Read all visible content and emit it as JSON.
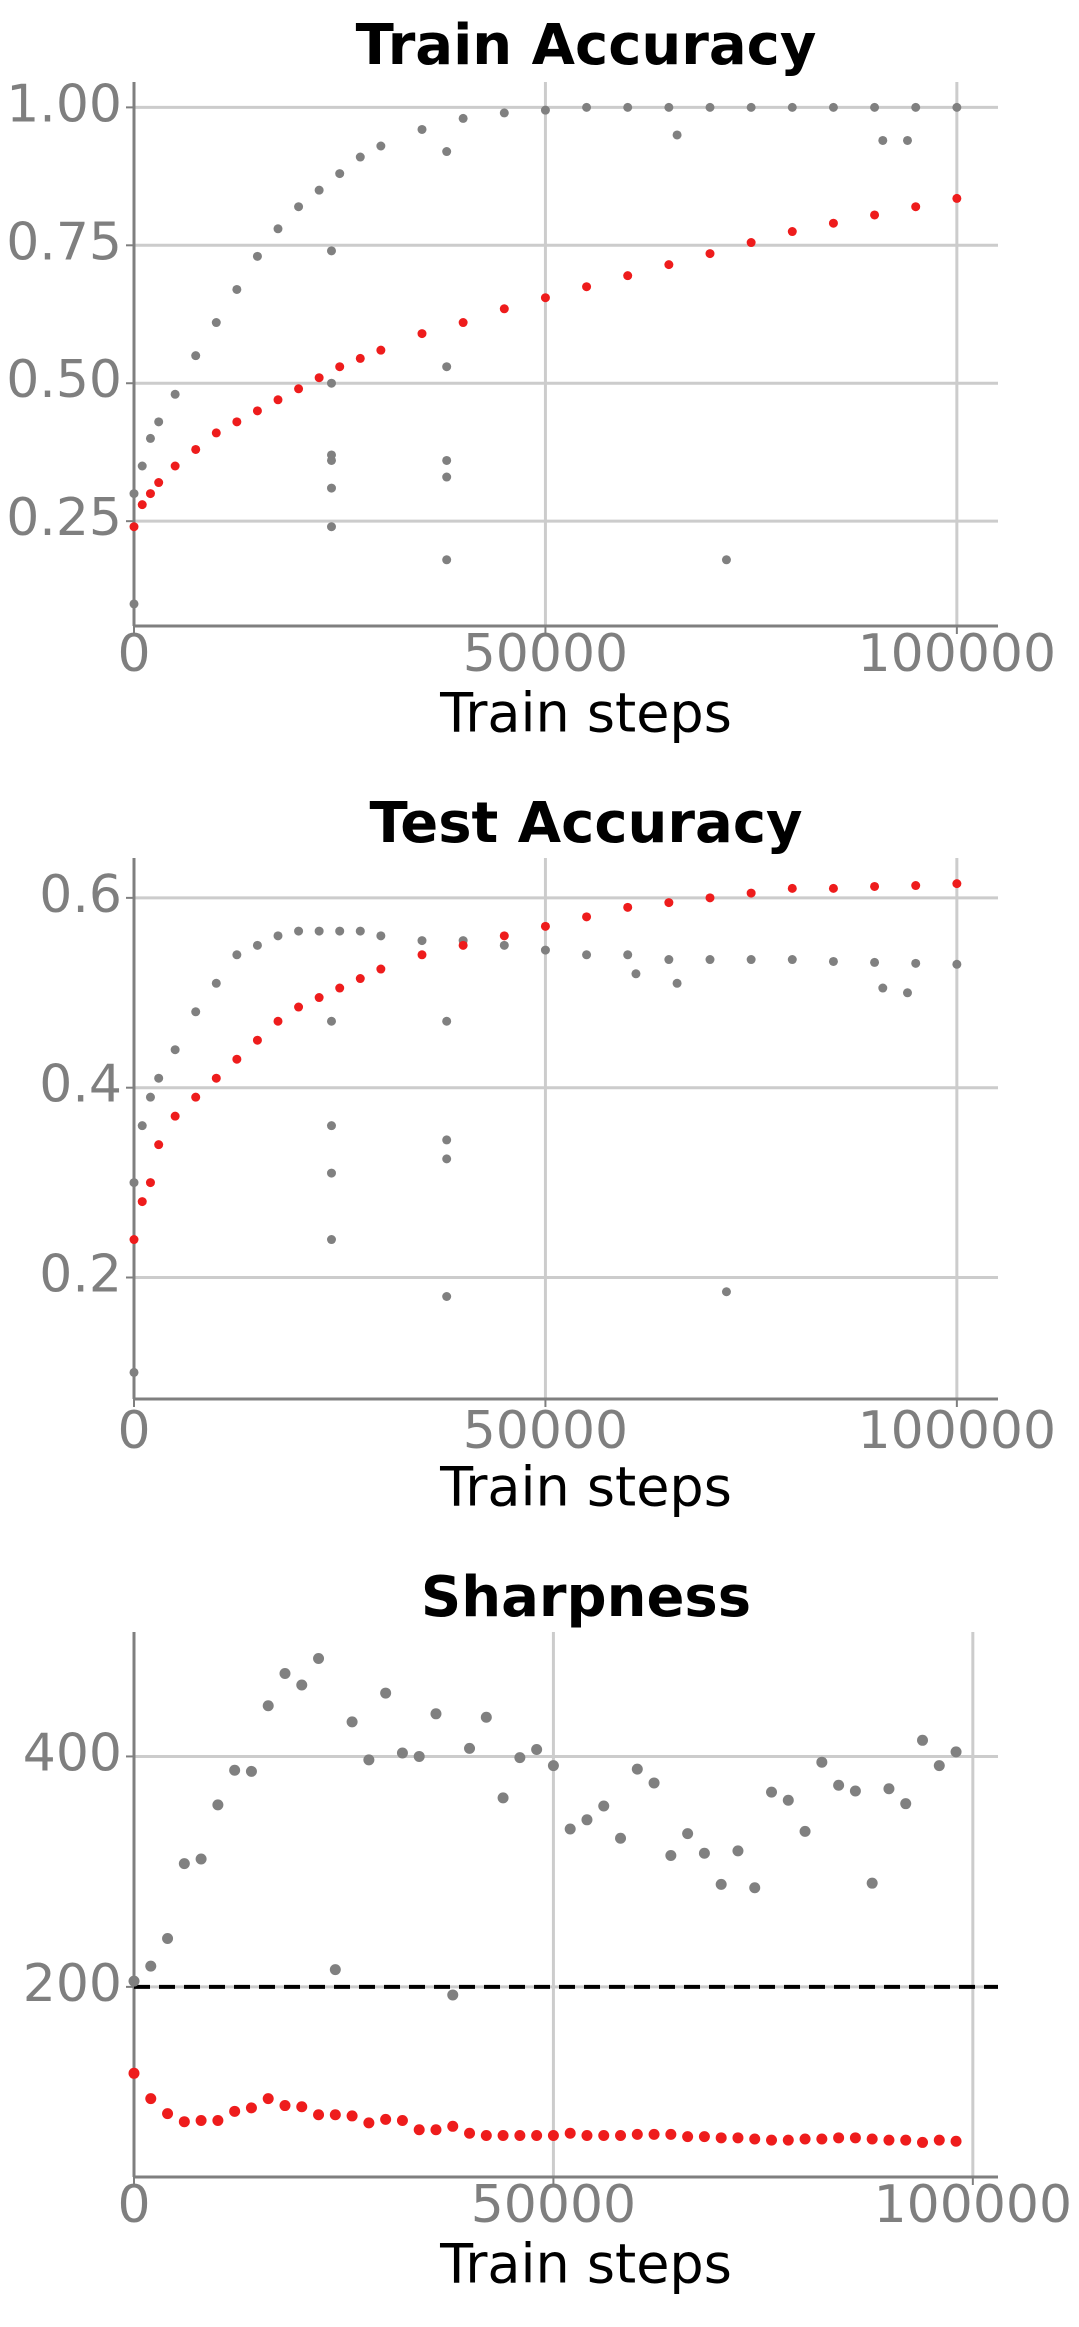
{
  "chart_data": [
    {
      "type": "scatter",
      "title": "Train Accuracy",
      "x_label": "Train steps",
      "xlim": [
        0,
        105000
      ],
      "xticks": [
        0,
        50000,
        100000
      ],
      "ylim": [
        0.06,
        1.046
      ],
      "yticks": [
        {
          "value": 0.25,
          "label": "0.25"
        },
        {
          "value": 0.5,
          "label": "0.50"
        },
        {
          "value": 0.75,
          "label": "0.75"
        },
        {
          "value": 1.0,
          "label": "1.00"
        }
      ],
      "grid": true,
      "series": [
        {
          "color": "#808080",
          "x": [
            0,
            1000,
            2000,
            3000,
            5000,
            7500,
            10000,
            12500,
            15000,
            17500,
            20000,
            22500,
            25000,
            27500,
            30000,
            35000,
            40000,
            45000,
            50000,
            55000,
            60000,
            65000,
            70000,
            75000,
            80000,
            85000,
            90000,
            95000,
            100000
          ],
          "values": [
            0.3,
            0.35,
            0.4,
            0.43,
            0.48,
            0.55,
            0.61,
            0.67,
            0.73,
            0.78,
            0.82,
            0.85,
            0.88,
            0.91,
            0.93,
            0.96,
            0.98,
            0.99,
            0.995,
            1.0,
            1.0,
            1.0,
            1.0,
            1.0,
            1.0,
            1.0,
            1.0,
            1.0,
            1.0
          ]
        },
        {
          "color": "#808080",
          "x": [
            0,
            24000,
            24000,
            24000,
            24000,
            24000,
            24000,
            38000,
            38000,
            38000,
            38000,
            38000,
            66000,
            72000,
            91000,
            94000
          ],
          "values": [
            0.1,
            0.74,
            0.5,
            0.37,
            0.36,
            0.31,
            0.24,
            0.92,
            0.53,
            0.36,
            0.33,
            0.18,
            0.95,
            0.18,
            0.94,
            0.94
          ]
        },
        {
          "color": "#ee1c1c",
          "x": [
            0,
            1000,
            2000,
            3000,
            5000,
            7500,
            10000,
            12500,
            15000,
            17500,
            20000,
            22500,
            25000,
            27500,
            30000,
            35000,
            40000,
            45000,
            50000,
            55000,
            60000,
            65000,
            70000,
            75000,
            80000,
            85000,
            90000,
            95000,
            100000
          ],
          "values": [
            0.24,
            0.28,
            0.3,
            0.32,
            0.35,
            0.38,
            0.41,
            0.43,
            0.45,
            0.47,
            0.49,
            0.51,
            0.53,
            0.545,
            0.56,
            0.59,
            0.61,
            0.635,
            0.655,
            0.675,
            0.695,
            0.715,
            0.735,
            0.755,
            0.775,
            0.79,
            0.805,
            0.82,
            0.835
          ]
        }
      ]
    },
    {
      "type": "scatter",
      "title": "Test Accuracy",
      "x_label": "Train steps",
      "xlim": [
        0,
        105000
      ],
      "xticks": [
        0,
        50000,
        100000
      ],
      "ylim": [
        0.072,
        0.642
      ],
      "yticks": [
        0.2,
        0.4,
        0.6
      ],
      "grid": true,
      "series": [
        {
          "color": "#808080",
          "x": [
            0,
            1000,
            2000,
            3000,
            5000,
            7500,
            10000,
            12500,
            15000,
            17500,
            20000,
            22500,
            25000,
            27500,
            30000,
            35000,
            40000,
            45000,
            50000,
            55000,
            60000,
            65000,
            70000,
            75000,
            80000,
            85000,
            90000,
            95000,
            100000
          ],
          "values": [
            0.3,
            0.36,
            0.39,
            0.41,
            0.44,
            0.48,
            0.51,
            0.54,
            0.55,
            0.56,
            0.565,
            0.565,
            0.565,
            0.565,
            0.56,
            0.555,
            0.555,
            0.55,
            0.545,
            0.54,
            0.54,
            0.535,
            0.535,
            0.535,
            0.535,
            0.533,
            0.532,
            0.531,
            0.53
          ]
        },
        {
          "color": "#808080",
          "x": [
            0,
            24000,
            24000,
            24000,
            24000,
            38000,
            38000,
            38000,
            38000,
            61000,
            66000,
            72000,
            91000,
            94000
          ],
          "values": [
            0.1,
            0.47,
            0.36,
            0.31,
            0.24,
            0.47,
            0.345,
            0.325,
            0.18,
            0.52,
            0.51,
            0.185,
            0.505,
            0.5
          ]
        },
        {
          "color": "#ee1c1c",
          "x": [
            0,
            1000,
            2000,
            3000,
            5000,
            7500,
            10000,
            12500,
            15000,
            17500,
            20000,
            22500,
            25000,
            27500,
            30000,
            35000,
            40000,
            45000,
            50000,
            55000,
            60000,
            65000,
            70000,
            75000,
            80000,
            85000,
            90000,
            95000,
            100000
          ],
          "values": [
            0.24,
            0.28,
            0.3,
            0.34,
            0.37,
            0.39,
            0.41,
            0.43,
            0.45,
            0.47,
            0.485,
            0.495,
            0.505,
            0.515,
            0.525,
            0.54,
            0.55,
            0.56,
            0.57,
            0.58,
            0.59,
            0.595,
            0.6,
            0.605,
            0.61,
            0.61,
            0.612,
            0.613,
            0.615
          ]
        }
      ]
    },
    {
      "type": "scatter",
      "title": "Sharpness",
      "x_label": "Train steps",
      "xlim": [
        0,
        103000
      ],
      "xticks": [
        0,
        50000,
        100000
      ],
      "ylim": [
        35,
        508
      ],
      "yticks": [
        200,
        400
      ],
      "grid": true,
      "reference_line": {
        "value": 200,
        "color": "#000000",
        "dashed": true
      },
      "series": [
        {
          "color": "#808080",
          "x": [
            0,
            2000,
            4000,
            6000,
            8000,
            10000,
            12000,
            14000,
            16000,
            18000,
            20000,
            22000,
            24000,
            26000,
            28000,
            30000,
            32000,
            34000,
            36000,
            38000,
            40000,
            42000,
            44000,
            46000,
            48000,
            50000,
            52000,
            54000,
            56000,
            58000,
            60000,
            62000,
            64000,
            66000,
            68000,
            70000,
            72000,
            74000,
            76000,
            78000,
            80000,
            82000,
            84000,
            86000,
            88000,
            90000,
            92000,
            94000,
            96000,
            98000
          ],
          "values": [
            205,
            218,
            242,
            307,
            311,
            358,
            388,
            387,
            444,
            472,
            462,
            485,
            215,
            430,
            397,
            455,
            403,
            400,
            437,
            193,
            407,
            434,
            364,
            399,
            406,
            392,
            337,
            345,
            357,
            329,
            389,
            377,
            314,
            333,
            316,
            289,
            318,
            286,
            369,
            362,
            335,
            395,
            375,
            370,
            290,
            372,
            359,
            414,
            392,
            404
          ]
        },
        {
          "color": "#ee1c1c",
          "x": [
            0,
            2000,
            4000,
            6000,
            8000,
            10000,
            12000,
            14000,
            16000,
            18000,
            20000,
            22000,
            24000,
            26000,
            28000,
            30000,
            32000,
            34000,
            36000,
            38000,
            40000,
            42000,
            44000,
            46000,
            48000,
            50000,
            52000,
            54000,
            56000,
            58000,
            60000,
            62000,
            64000,
            66000,
            68000,
            70000,
            72000,
            74000,
            76000,
            78000,
            80000,
            82000,
            84000,
            86000,
            88000,
            90000,
            92000,
            94000,
            96000,
            98000
          ],
          "values": [
            125,
            103,
            90,
            83,
            84,
            84,
            92,
            95,
            103,
            97,
            96,
            89,
            89,
            88,
            82,
            85,
            84,
            76,
            76,
            79,
            73,
            71,
            71,
            71,
            71,
            71,
            73,
            71,
            71,
            71,
            72,
            72,
            72,
            70,
            70,
            69,
            69,
            68,
            67,
            67,
            68,
            68,
            69,
            69,
            68,
            67,
            67,
            65,
            67,
            66
          ]
        }
      ]
    }
  ]
}
